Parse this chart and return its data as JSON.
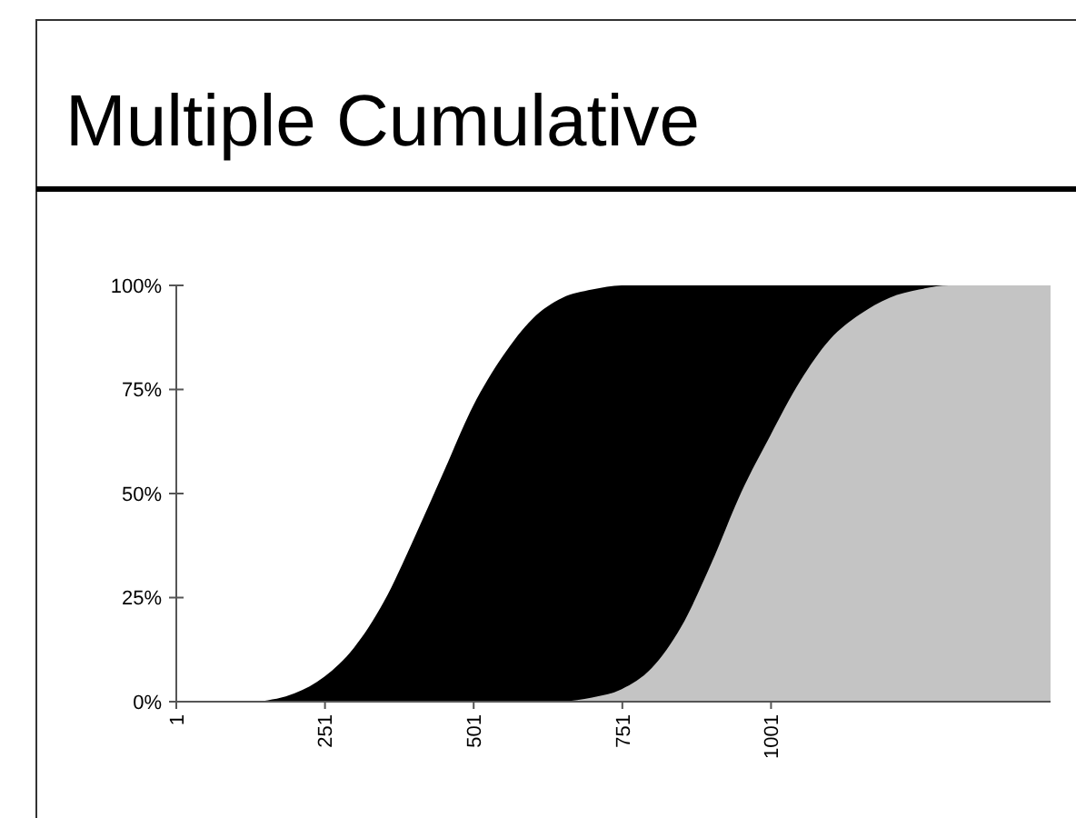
{
  "chart_data": {
    "type": "area",
    "title": "Multiple Cumulative",
    "xlim": [
      1,
      1471
    ],
    "xticks": [
      1,
      251,
      501,
      751,
      1001
    ],
    "ylim": [
      0,
      100
    ],
    "yticks": [
      {
        "value": 0,
        "label": "0%"
      },
      {
        "value": 25,
        "label": "25%"
      },
      {
        "value": 50,
        "label": "50%"
      },
      {
        "value": 75,
        "label": "75%"
      },
      {
        "value": 100,
        "label": "100%"
      }
    ],
    "grid": false,
    "series": [
      {
        "color": "#000000",
        "x": [
          140,
          200,
          250,
          300,
          350,
          400,
          450,
          500,
          550,
          600,
          650,
          700,
          750,
          1471
        ],
        "values": [
          0,
          2,
          6,
          13,
          24,
          39,
          55,
          71,
          83,
          92,
          97,
          99,
          100,
          100
        ]
      },
      {
        "color": "#c4c4c4",
        "x": [
          650,
          700,
          750,
          800,
          850,
          900,
          950,
          1000,
          1050,
          1100,
          1150,
          1200,
          1250,
          1300,
          1471
        ],
        "values": [
          0,
          1,
          3,
          8,
          18,
          33,
          50,
          64,
          77,
          87,
          93,
          97,
          99,
          100,
          100
        ]
      }
    ]
  }
}
